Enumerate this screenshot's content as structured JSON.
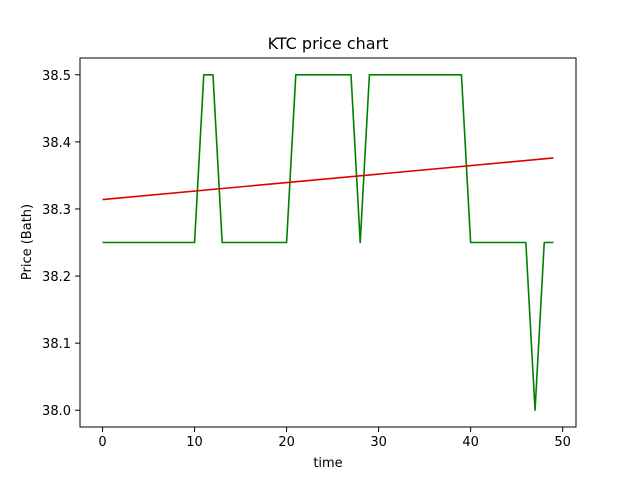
{
  "chart_data": {
    "type": "line",
    "title": "KTC price chart",
    "xlabel": "time",
    "ylabel": "Price (Bath)",
    "xlim": [
      -2.45,
      51.45
    ],
    "ylim": [
      37.975,
      38.525
    ],
    "xticks": [
      0,
      10,
      20,
      30,
      40,
      50
    ],
    "yticks": [
      38.0,
      38.1,
      38.2,
      38.3,
      38.4,
      38.5
    ],
    "ytick_labels": [
      "38.0",
      "38.1",
      "38.2",
      "38.3",
      "38.4",
      "38.5"
    ],
    "grid": false,
    "series": [
      {
        "color": "#008000",
        "x": [
          0,
          1,
          2,
          3,
          4,
          5,
          6,
          7,
          8,
          9,
          10,
          11,
          12,
          13,
          14,
          15,
          16,
          17,
          18,
          19,
          20,
          21,
          22,
          23,
          24,
          25,
          26,
          27,
          28,
          29,
          30,
          31,
          32,
          33,
          34,
          35,
          36,
          37,
          38,
          39,
          40,
          41,
          42,
          43,
          44,
          45,
          46,
          47,
          48,
          49
        ],
        "y": [
          38.25,
          38.25,
          38.25,
          38.25,
          38.25,
          38.25,
          38.25,
          38.25,
          38.25,
          38.25,
          38.25,
          38.5,
          38.5,
          38.25,
          38.25,
          38.25,
          38.25,
          38.25,
          38.25,
          38.25,
          38.25,
          38.5,
          38.5,
          38.5,
          38.5,
          38.5,
          38.5,
          38.5,
          38.25,
          38.5,
          38.5,
          38.5,
          38.5,
          38.5,
          38.5,
          38.5,
          38.5,
          38.5,
          38.5,
          38.5,
          38.25,
          38.25,
          38.25,
          38.25,
          38.25,
          38.25,
          38.25,
          38.0,
          38.25,
          38.25
        ]
      },
      {
        "color": "#e00000",
        "x": [
          0,
          49
        ],
        "y": [
          38.314,
          38.376
        ]
      }
    ]
  }
}
